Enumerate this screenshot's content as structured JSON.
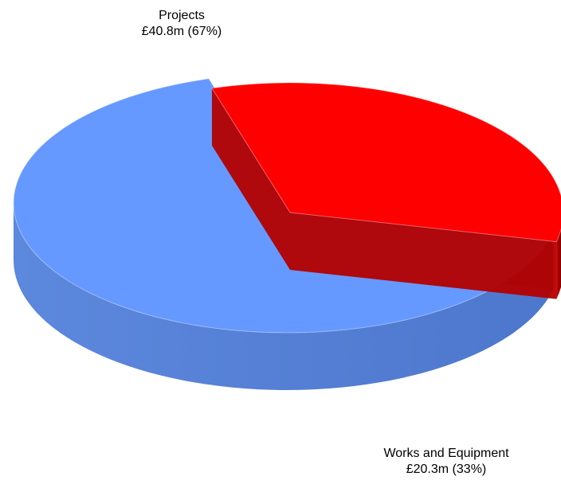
{
  "chart_data": {
    "type": "pie",
    "style": "3d-exploded",
    "slices": [
      {
        "name": "Projects",
        "value": 40.8,
        "display_value": "£40.8m",
        "percent": "67%",
        "color": "#6699ff"
      },
      {
        "name": "Works and Equipment",
        "value": 20.3,
        "display_value": "£20.3m",
        "percent": "33%",
        "color": "#ff0000"
      }
    ]
  }
}
